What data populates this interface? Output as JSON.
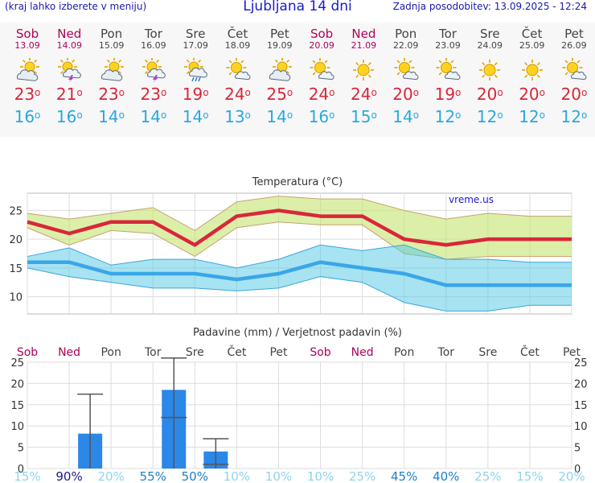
{
  "header": {
    "left_note": "(kraj lahko izberete v meniju)",
    "title": "Ljubljana 14 dni",
    "updated": "Zadnja posodobitev: 13.09.2025 - 12:24"
  },
  "days": [
    {
      "name": "Sob",
      "date": "13.09",
      "weekend": true,
      "icon": "partly-cloudy-icon",
      "tmax": 23,
      "tmin": 16
    },
    {
      "name": "Ned",
      "date": "14.09",
      "weekend": true,
      "icon": "sun-thunderstorm-icon",
      "tmax": 21,
      "tmin": 16
    },
    {
      "name": "Pon",
      "date": "15.09",
      "weekend": false,
      "icon": "partly-cloudy-icon",
      "tmax": 23,
      "tmin": 14
    },
    {
      "name": "Tor",
      "date": "16.09",
      "weekend": false,
      "icon": "sun-thunderstorm-icon",
      "tmax": 23,
      "tmin": 14
    },
    {
      "name": "Sre",
      "date": "17.09",
      "weekend": false,
      "icon": "sun-rain-icon",
      "tmax": 19,
      "tmin": 14
    },
    {
      "name": "Čet",
      "date": "18.09",
      "weekend": false,
      "icon": "sun-cloud-icon",
      "tmax": 24,
      "tmin": 13
    },
    {
      "name": "Pet",
      "date": "19.09",
      "weekend": false,
      "icon": "partly-cloudy-icon",
      "tmax": 25,
      "tmin": 14
    },
    {
      "name": "Sob",
      "date": "20.09",
      "weekend": true,
      "icon": "sun-cloud-icon",
      "tmax": 24,
      "tmin": 16
    },
    {
      "name": "Ned",
      "date": "21.09",
      "weekend": true,
      "icon": "sun-icon",
      "tmax": 24,
      "tmin": 15
    },
    {
      "name": "Pon",
      "date": "22.09",
      "weekend": false,
      "icon": "sun-cloud-icon",
      "tmax": 20,
      "tmin": 14
    },
    {
      "name": "Tor",
      "date": "23.09",
      "weekend": false,
      "icon": "sun-cloud-icon",
      "tmax": 19,
      "tmin": 12
    },
    {
      "name": "Sre",
      "date": "24.09",
      "weekend": false,
      "icon": "sun-icon",
      "tmax": 20,
      "tmin": 12
    },
    {
      "name": "Čet",
      "date": "25.09",
      "weekend": false,
      "icon": "sun-icon",
      "tmax": 20,
      "tmin": 12
    },
    {
      "name": "Pet",
      "date": "26.09",
      "weekend": false,
      "icon": "sun-cloud-icon",
      "tmax": 20,
      "tmin": 12
    }
  ],
  "degree_symbol": "o",
  "colors": {
    "max": "#d9263a",
    "min": "#29a8e0",
    "weekend": "#b0005a",
    "bar": "#2b87e8"
  },
  "chart_data": [
    {
      "type": "line",
      "title": "Temperatura (°C)",
      "watermark": "vreme.us",
      "ylim": [
        7,
        28
      ],
      "yticks": [
        10,
        15,
        20,
        25
      ],
      "x": [
        "13.09",
        "14.09",
        "15.09",
        "16.09",
        "17.09",
        "18.09",
        "19.09",
        "20.09",
        "21.09",
        "22.09",
        "23.09",
        "24.09",
        "25.09",
        "26.09"
      ],
      "series": [
        {
          "values": [
            23,
            21,
            23,
            23,
            19,
            24,
            25,
            24,
            24,
            20,
            19,
            20,
            20,
            20
          ]
        },
        {
          "values": [
            16,
            16,
            14,
            14,
            14,
            13,
            14,
            16,
            15,
            14,
            12,
            12,
            12,
            12
          ]
        }
      ],
      "max_band": {
        "upper": [
          24.5,
          23.5,
          24.5,
          25.5,
          21.5,
          26.5,
          27.5,
          27,
          27,
          25,
          23.5,
          24.5,
          24,
          24
        ],
        "lower": [
          22,
          19,
          21.5,
          21,
          17,
          22,
          23,
          22.5,
          22.5,
          17.5,
          16.5,
          17,
          17,
          17
        ]
      },
      "min_band": {
        "upper": [
          17,
          18.5,
          15.5,
          16.5,
          16.5,
          15,
          16.5,
          19,
          18,
          19,
          16.5,
          16.5,
          16,
          16
        ],
        "lower": [
          15,
          13.5,
          12.5,
          11.5,
          11.5,
          11,
          11.5,
          13.5,
          12.5,
          9,
          7.5,
          7.5,
          8.5,
          8.5
        ]
      }
    },
    {
      "type": "bar",
      "title": "Padavine (mm) / Verjetnost padavin (%)",
      "ylim": [
        0,
        25
      ],
      "yticks": [
        0,
        5,
        10,
        15,
        20,
        25
      ],
      "categories": [
        "Sob",
        "Ned",
        "Pon",
        "Tor",
        "Sre",
        "Čet",
        "Pet",
        "Sob",
        "Ned",
        "Pon",
        "Tor",
        "Sre",
        "Čet",
        "Pet"
      ],
      "values": [
        0,
        8.2,
        0,
        18.5,
        4,
        0,
        0,
        0,
        0,
        0,
        0,
        0,
        0,
        0
      ],
      "error_high": [
        0,
        17.5,
        0,
        26,
        7,
        0,
        0,
        0,
        0,
        0,
        0,
        0,
        0,
        0
      ],
      "error_mid": [
        0,
        0,
        0,
        12,
        1,
        0,
        0,
        0,
        0,
        0,
        0,
        0,
        0,
        0
      ],
      "probability": [
        "15%",
        "90%",
        "20%",
        "55%",
        "50%",
        "10%",
        "10%",
        "10%",
        "25%",
        "45%",
        "40%",
        "25%",
        "15%",
        "20%"
      ],
      "probability_values": [
        15,
        90,
        20,
        55,
        50,
        10,
        10,
        10,
        25,
        45,
        40,
        25,
        15,
        20
      ]
    }
  ]
}
